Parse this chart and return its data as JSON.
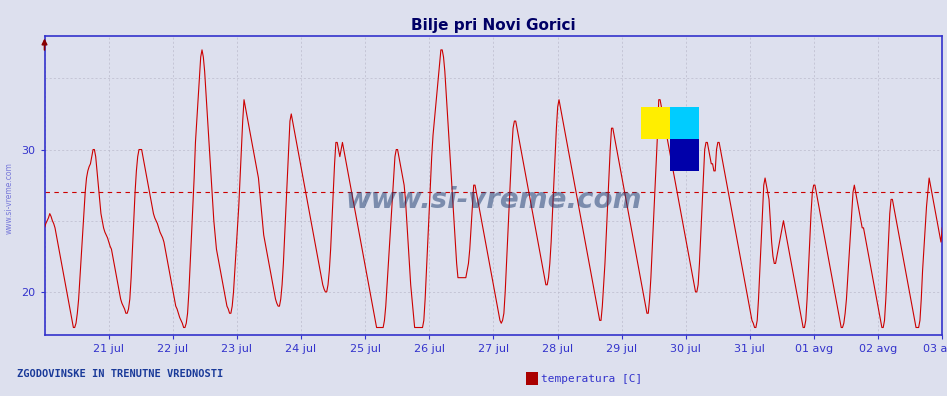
{
  "title": "Bilje pri Novi Gorici",
  "background_color": "#dde0ee",
  "plot_bg_color": "#dde0ee",
  "line_color": "#cc0000",
  "line_width": 0.8,
  "ylim": [
    17,
    38
  ],
  "yticks": [
    20,
    30
  ],
  "avg_line_y": 27.0,
  "avg_line_color": "#cc0000",
  "title_color": "#000066",
  "title_fontsize": 11,
  "axis_color": "#3333cc",
  "tick_label_color": "#3333cc",
  "tick_fontsize": 8,
  "grid_color": "#bbbbcc",
  "watermark_text": "www.si-vreme.com",
  "watermark_color": "#1a3a6e",
  "legend_label": "temperatura [C]",
  "legend_color": "#aa0000",
  "bottom_left_text": "ZGODOVINSKE IN TRENUTNE VREDNOSTI",
  "bottom_text_color": "#1a3a99",
  "x_labels": [
    "21 jul",
    "22 jul",
    "23 jul",
    "24 jul",
    "25 jul",
    "26 jul",
    "27 jul",
    "28 jul",
    "29 jul",
    "30 jul",
    "31 jul",
    "01 avg",
    "02 avg",
    "03 avg"
  ],
  "num_days": 14,
  "points_per_day": 48,
  "temperature_data": [
    24.5,
    24.8,
    25.0,
    25.2,
    25.5,
    25.3,
    25.0,
    24.8,
    24.5,
    24.0,
    23.5,
    23.0,
    22.5,
    22.0,
    21.5,
    21.0,
    20.5,
    20.0,
    19.5,
    19.0,
    18.5,
    18.0,
    17.5,
    17.5,
    17.8,
    18.5,
    19.5,
    21.0,
    22.5,
    24.0,
    25.5,
    27.0,
    28.0,
    28.5,
    28.8,
    29.0,
    29.5,
    30.0,
    30.0,
    29.5,
    28.5,
    27.5,
    26.5,
    25.5,
    25.0,
    24.5,
    24.2,
    24.0,
    23.8,
    23.5,
    23.2,
    23.0,
    22.5,
    22.0,
    21.5,
    21.0,
    20.5,
    20.0,
    19.5,
    19.2,
    19.0,
    18.8,
    18.5,
    18.5,
    18.8,
    19.5,
    21.0,
    23.0,
    25.0,
    27.0,
    28.5,
    29.5,
    30.0,
    30.0,
    30.0,
    29.5,
    29.0,
    28.5,
    28.0,
    27.5,
    27.0,
    26.5,
    26.0,
    25.5,
    25.2,
    25.0,
    24.8,
    24.5,
    24.2,
    24.0,
    23.8,
    23.5,
    23.0,
    22.5,
    22.0,
    21.5,
    21.0,
    20.5,
    20.0,
    19.5,
    19.0,
    18.8,
    18.5,
    18.2,
    18.0,
    17.8,
    17.5,
    17.5,
    17.8,
    18.5,
    20.0,
    22.0,
    24.0,
    26.0,
    28.0,
    30.5,
    32.0,
    33.5,
    35.0,
    36.5,
    37.0,
    36.5,
    35.5,
    34.0,
    32.5,
    31.0,
    29.5,
    28.0,
    26.5,
    25.0,
    24.0,
    23.0,
    22.5,
    22.0,
    21.5,
    21.0,
    20.5,
    20.0,
    19.5,
    19.0,
    18.8,
    18.5,
    18.5,
    19.0,
    20.0,
    21.5,
    23.0,
    24.5,
    26.0,
    28.0,
    30.0,
    32.0,
    33.5,
    33.0,
    32.5,
    32.0,
    31.5,
    31.0,
    30.5,
    30.0,
    29.5,
    29.0,
    28.5,
    28.0,
    27.0,
    26.0,
    25.0,
    24.0,
    23.5,
    23.0,
    22.5,
    22.0,
    21.5,
    21.0,
    20.5,
    20.0,
    19.5,
    19.2,
    19.0,
    19.0,
    19.5,
    20.5,
    22.0,
    24.0,
    26.0,
    28.0,
    30.0,
    32.0,
    32.5,
    32.0,
    31.5,
    31.0,
    30.5,
    30.0,
    29.5,
    29.0,
    28.5,
    28.0,
    27.5,
    27.0,
    26.5,
    26.0,
    25.5,
    25.0,
    24.5,
    24.0,
    23.5,
    23.0,
    22.5,
    22.0,
    21.5,
    21.0,
    20.5,
    20.2,
    20.0,
    20.0,
    20.5,
    21.5,
    23.0,
    25.0,
    27.0,
    29.0,
    30.5,
    30.5,
    30.0,
    29.5,
    30.0,
    30.5,
    30.0,
    29.5,
    29.0,
    28.5,
    28.0,
    27.5,
    27.0,
    26.5,
    26.0,
    25.5,
    25.0,
    24.5,
    24.0,
    23.5,
    23.0,
    22.5,
    22.0,
    21.5,
    21.0,
    20.5,
    20.0,
    19.5,
    19.0,
    18.5,
    18.0,
    17.5,
    17.5,
    17.5,
    17.5,
    17.5,
    17.5,
    18.0,
    19.0,
    20.5,
    22.0,
    23.5,
    25.0,
    26.5,
    28.0,
    29.5,
    30.0,
    30.0,
    29.5,
    29.0,
    28.5,
    28.0,
    27.5,
    26.5,
    25.0,
    23.5,
    22.0,
    20.5,
    19.5,
    18.5,
    17.5,
    17.5,
    17.5,
    17.5,
    17.5,
    17.5,
    17.5,
    18.0,
    19.5,
    21.5,
    23.5,
    25.5,
    27.5,
    29.5,
    31.0,
    32.0,
    33.0,
    34.0,
    35.0,
    36.0,
    37.0,
    37.0,
    36.5,
    35.5,
    34.0,
    32.5,
    31.0,
    29.5,
    28.0,
    26.5,
    25.0,
    23.5,
    22.0,
    21.0,
    21.0,
    21.0,
    21.0,
    21.0,
    21.0,
    21.0,
    21.5,
    22.0,
    23.0,
    24.5,
    26.0,
    27.5,
    27.5,
    27.0,
    26.5,
    26.0,
    25.5,
    25.0,
    24.5,
    24.0,
    23.5,
    23.0,
    22.5,
    22.0,
    21.5,
    21.0,
    20.5,
    20.0,
    19.5,
    19.0,
    18.5,
    18.0,
    17.8,
    18.0,
    18.5,
    20.0,
    22.0,
    24.0,
    26.0,
    28.0,
    30.0,
    31.5,
    32.0,
    32.0,
    31.5,
    31.0,
    30.5,
    30.0,
    29.5,
    29.0,
    28.5,
    28.0,
    27.5,
    27.0,
    26.5,
    26.0,
    25.5,
    25.0,
    24.5,
    24.0,
    23.5,
    23.0,
    22.5,
    22.0,
    21.5,
    21.0,
    20.5,
    20.5,
    21.0,
    22.0,
    23.5,
    25.5,
    27.5,
    29.5,
    31.5,
    33.0,
    33.5,
    33.0,
    32.5,
    32.0,
    31.5,
    31.0,
    30.5,
    30.0,
    29.5,
    29.0,
    28.5,
    28.0,
    27.5,
    27.0,
    26.5,
    26.0,
    25.5,
    25.0,
    24.5,
    24.0,
    23.5,
    23.0,
    22.5,
    22.0,
    21.5,
    21.0,
    20.5,
    20.0,
    19.5,
    19.0,
    18.5,
    18.0,
    18.0,
    19.0,
    20.5,
    22.0,
    24.0,
    26.0,
    28.0,
    30.0,
    31.5,
    31.5,
    31.0,
    30.5,
    30.0,
    29.5,
    29.0,
    28.5,
    28.0,
    27.5,
    27.0,
    26.5,
    26.0,
    25.5,
    25.0,
    24.5,
    24.0,
    23.5,
    23.0,
    22.5,
    22.0,
    21.5,
    21.0,
    20.5,
    20.0,
    19.5,
    19.0,
    18.5,
    18.5,
    19.5,
    21.0,
    23.0,
    25.0,
    27.0,
    29.0,
    31.0,
    33.5,
    33.5,
    33.0,
    32.5,
    32.0,
    31.5,
    31.0,
    30.5,
    30.0,
    29.5,
    29.0,
    28.5,
    28.0,
    27.5,
    27.0,
    26.5,
    26.0,
    25.5,
    25.0,
    24.5,
    24.0,
    23.5,
    23.0,
    22.5,
    22.0,
    21.5,
    21.0,
    20.5,
    20.0,
    20.0,
    20.5,
    22.0,
    24.0,
    26.0,
    28.0,
    30.0,
    30.5,
    30.5,
    30.0,
    29.5,
    29.0,
    29.0,
    28.5,
    28.5,
    30.0,
    30.5,
    30.5,
    30.0,
    29.5,
    29.0,
    28.5,
    28.0,
    27.5,
    27.0,
    26.5,
    26.0,
    25.5,
    25.0,
    24.5,
    24.0,
    23.5,
    23.0,
    22.5,
    22.0,
    21.5,
    21.0,
    20.5,
    20.0,
    19.5,
    19.0,
    18.5,
    18.0,
    17.8,
    17.5,
    17.5,
    18.0,
    19.5,
    21.5,
    23.5,
    25.5,
    27.5,
    28.0,
    27.5,
    27.0,
    26.5,
    25.0,
    23.5,
    22.5,
    22.0,
    22.0,
    22.5,
    23.0,
    23.5,
    24.0,
    24.5,
    25.0,
    24.5,
    24.0,
    23.5,
    23.0,
    22.5,
    22.0,
    21.5,
    21.0,
    20.5,
    20.0,
    19.5,
    19.0,
    18.5,
    18.0,
    17.5,
    17.5,
    18.0,
    19.5,
    21.5,
    23.5,
    25.5,
    27.0,
    27.5,
    27.5,
    27.0,
    26.5,
    26.0,
    25.5,
    25.0,
    24.5,
    24.0,
    23.5,
    23.0,
    22.5,
    22.0,
    21.5,
    21.0,
    20.5,
    20.0,
    19.5,
    19.0,
    18.5,
    18.0,
    17.5,
    17.5,
    17.8,
    18.5,
    19.5,
    21.0,
    22.5,
    24.0,
    25.5,
    27.0,
    27.5,
    27.0,
    26.5,
    26.0,
    25.5,
    25.0,
    24.5,
    24.5,
    24.0,
    23.5,
    23.0,
    22.5,
    22.0,
    21.5,
    21.0,
    20.5,
    20.0,
    19.5,
    19.0,
    18.5,
    18.0,
    17.5,
    17.5,
    18.0,
    19.5,
    21.5,
    23.5,
    25.5,
    26.5,
    26.5,
    26.0,
    25.5,
    25.0,
    24.5,
    24.0,
    23.5,
    23.0,
    22.5,
    22.0,
    21.5,
    21.0,
    20.5,
    20.0,
    19.5,
    19.0,
    18.5,
    18.0,
    17.5,
    17.5,
    17.5,
    18.0,
    19.5,
    21.5,
    23.0,
    24.5,
    26.0,
    27.0,
    28.0,
    27.5,
    27.0,
    26.5,
    26.0,
    25.5,
    25.0,
    24.5,
    24.0,
    23.5,
    24.5
  ]
}
